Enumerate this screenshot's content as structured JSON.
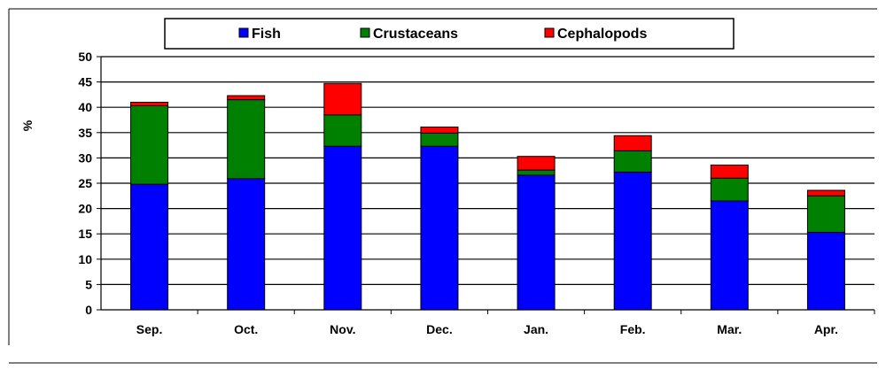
{
  "chart_data": {
    "type": "bar",
    "stacked": true,
    "categories": [
      "Sep.",
      "Oct.",
      "Nov.",
      "Dec.",
      "Jan.",
      "Feb.",
      "Mar.",
      "Apr."
    ],
    "series": [
      {
        "name": "Fish",
        "color": "#0000ff",
        "values": [
          24.8,
          25.9,
          32.3,
          32.3,
          26.6,
          27.2,
          21.5,
          15.3
        ]
      },
      {
        "name": "Crustaceans",
        "color": "#008000",
        "values": [
          15.5,
          15.6,
          6.2,
          2.6,
          1.0,
          4.2,
          4.5,
          7.2
        ]
      },
      {
        "name": "Cephalopods",
        "color": "#ff0000",
        "values": [
          0.7,
          0.8,
          6.2,
          1.2,
          2.7,
          3.0,
          2.6,
          1.1
        ]
      }
    ],
    "ylabel": "%",
    "xlabel": "",
    "title": "",
    "ylim": [
      0,
      50
    ],
    "yticks": [
      0,
      5,
      10,
      15,
      20,
      25,
      30,
      35,
      40,
      45,
      50
    ],
    "grid": "horizontal",
    "legend_position": "top"
  }
}
